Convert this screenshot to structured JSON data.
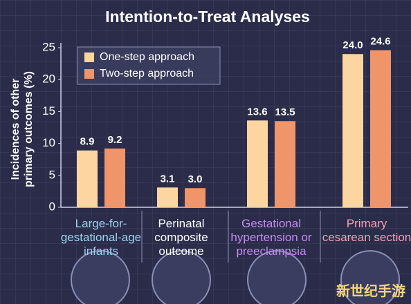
{
  "chart_data": {
    "type": "bar",
    "title": "Intention-to-Treat Analyses",
    "ylabel": "Incidences of other primary outcomes (%)",
    "categories": [
      "Large-for-gestational-age infants",
      "Perinatal composite outcome",
      "Gestational hypertension or preeclampsia",
      "Primary cesarean section"
    ],
    "category_colors": [
      "#9fd3f0",
      "#ffffff",
      "#c58cf0",
      "#f4a0b8"
    ],
    "series": [
      {
        "name": "One-step approach",
        "color": "#fdd5a0",
        "values": [
          8.9,
          3.1,
          13.6,
          24.0
        ],
        "value_labels": [
          "8.9",
          "3.1",
          "13.6",
          "24.0"
        ]
      },
      {
        "name": "Two-step approach",
        "color": "#f0956a",
        "values": [
          9.2,
          3.0,
          13.5,
          24.6
        ],
        "value_labels": [
          "9.2",
          "3.0",
          "13.5",
          "24.6"
        ]
      }
    ],
    "ylim": [
      0,
      25
    ],
    "yticks": [
      0,
      5,
      10,
      15,
      20,
      25
    ],
    "legend": "upper-left",
    "watermark": "新世纪手游"
  }
}
